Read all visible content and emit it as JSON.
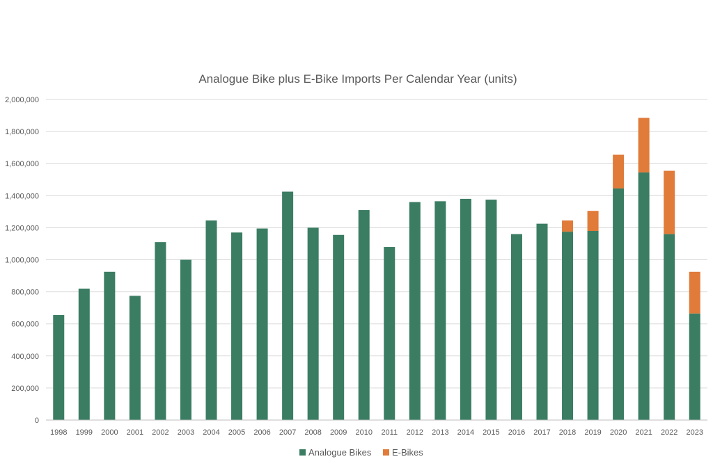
{
  "chart_data": {
    "type": "bar",
    "stacked": true,
    "title": "Analogue Bike plus E-Bike Imports Per Calendar Year (units)",
    "xlabel": "",
    "ylabel": "",
    "categories": [
      "1998",
      "1999",
      "2000",
      "2001",
      "2002",
      "2003",
      "2004",
      "2005",
      "2006",
      "2007",
      "2008",
      "2009",
      "2010",
      "2011",
      "2012",
      "2013",
      "2014",
      "2015",
      "2016",
      "2017",
      "2018",
      "2019",
      "2020",
      "2021",
      "2022",
      "2023"
    ],
    "series": [
      {
        "name": "Analogue Bikes",
        "color": "#3a7d63",
        "values": [
          655000,
          820000,
          925000,
          775000,
          1110000,
          1000000,
          1245000,
          1170000,
          1195000,
          1425000,
          1200000,
          1155000,
          1310000,
          1080000,
          1360000,
          1365000,
          1380000,
          1375000,
          1160000,
          1225000,
          1175000,
          1180000,
          1445000,
          1545000,
          1160000,
          665000
        ]
      },
      {
        "name": "E-Bikes",
        "color": "#e07b39",
        "values": [
          0,
          0,
          0,
          0,
          0,
          0,
          0,
          0,
          0,
          0,
          0,
          0,
          0,
          0,
          0,
          0,
          0,
          0,
          0,
          0,
          70000,
          125000,
          210000,
          340000,
          395000,
          260000
        ]
      }
    ],
    "ylim": [
      0,
      2000000
    ],
    "yticks": [
      0,
      200000,
      400000,
      600000,
      800000,
      1000000,
      1200000,
      1400000,
      1600000,
      1800000,
      2000000
    ],
    "ytick_labels": [
      "0",
      "200,000",
      "400,000",
      "600,000",
      "800,000",
      "1,000,000",
      "1,200,000",
      "1,400,000",
      "1,600,000",
      "1,800,000",
      "2,000,000"
    ],
    "grid": true,
    "legend_position": "bottom"
  }
}
